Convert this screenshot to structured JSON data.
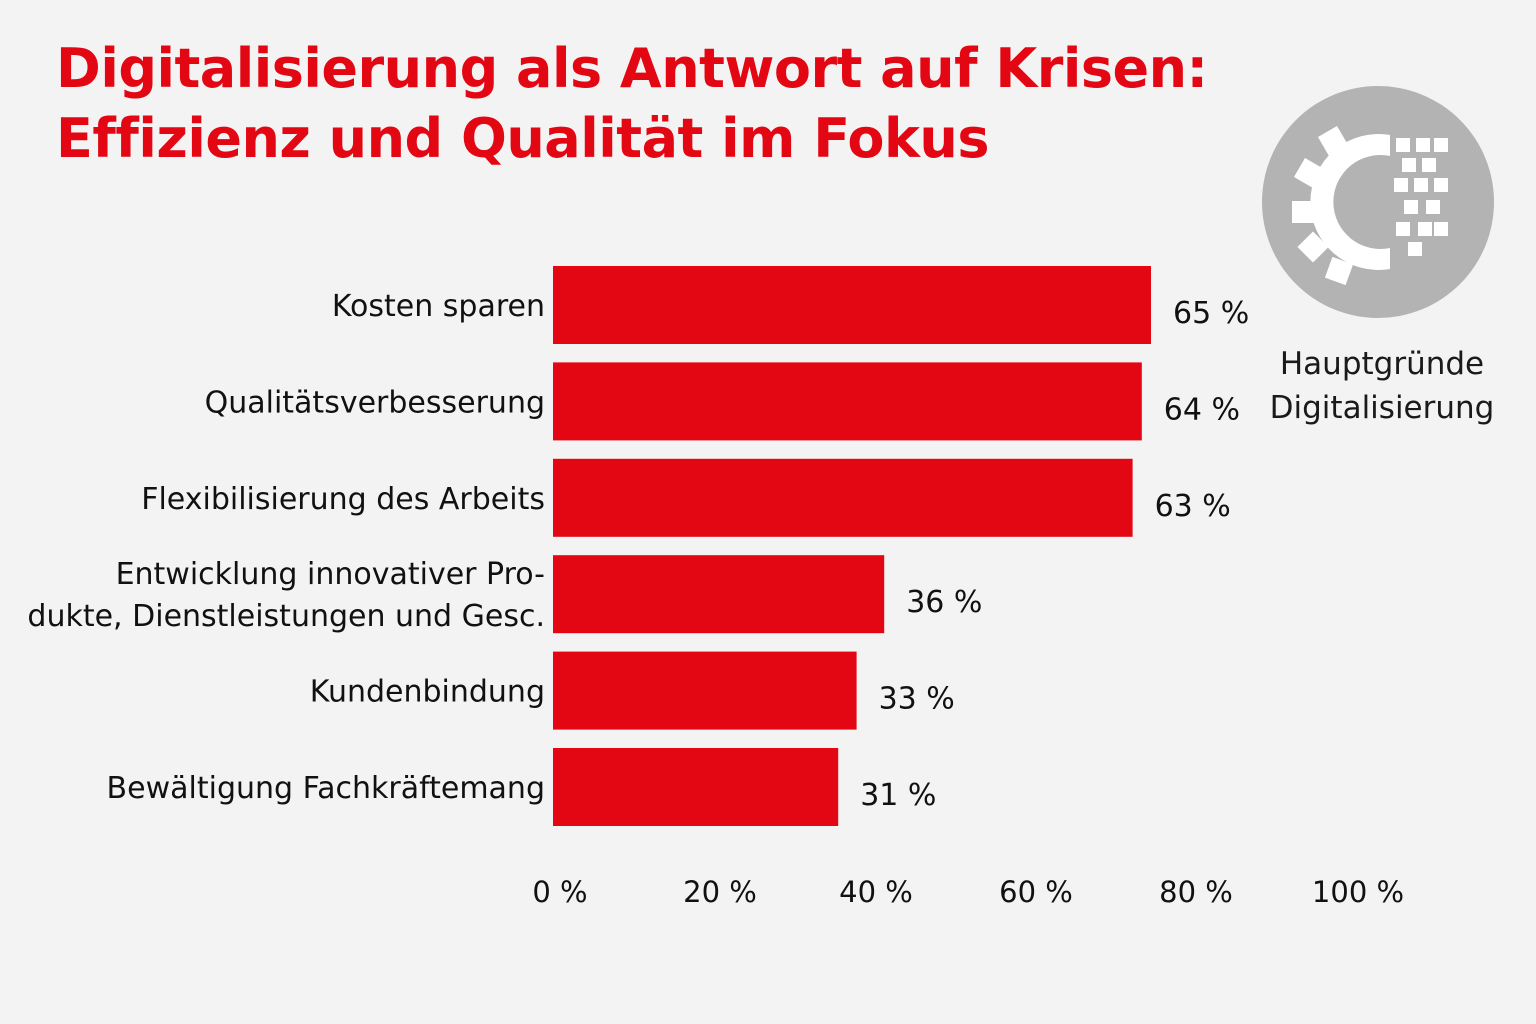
{
  "title_lines": [
    "Digitalisierung als Antwort auf Krisen:",
    "Effizienz und Qualität im Fokus"
  ],
  "side_label_lines": [
    "Hauptgründe",
    "Digitalisierung"
  ],
  "logo": {
    "icon": "gear-c-pixel-logo-icon",
    "letter": "C"
  },
  "colors": {
    "bar": "#e30613",
    "title": "#e30613",
    "background": "#f3f3f3",
    "logo": "#b3b3b3"
  },
  "chart_data": {
    "type": "bar",
    "orientation": "horizontal",
    "categories": [
      [
        "Kosten sparen"
      ],
      [
        "Qualitätsverbesserung"
      ],
      [
        "Flexibilisierung des Arbeits"
      ],
      [
        "Entwicklung innovativer Pro-",
        "dukte, Dienstleistungen und Gesc."
      ],
      [
        "Kundenbindung"
      ],
      [
        "Bewältigung Fachkräftemang"
      ]
    ],
    "values": [
      65,
      64,
      63,
      36,
      33,
      31
    ],
    "value_labels": [
      "65 %",
      "64 %",
      "63 %",
      "36 %",
      "33 %",
      "31 %"
    ],
    "x_ticks": [
      "0 %",
      "20 %",
      "40 %",
      "60 %",
      "80 %",
      "100 %"
    ],
    "grid": false,
    "legend": "none"
  }
}
